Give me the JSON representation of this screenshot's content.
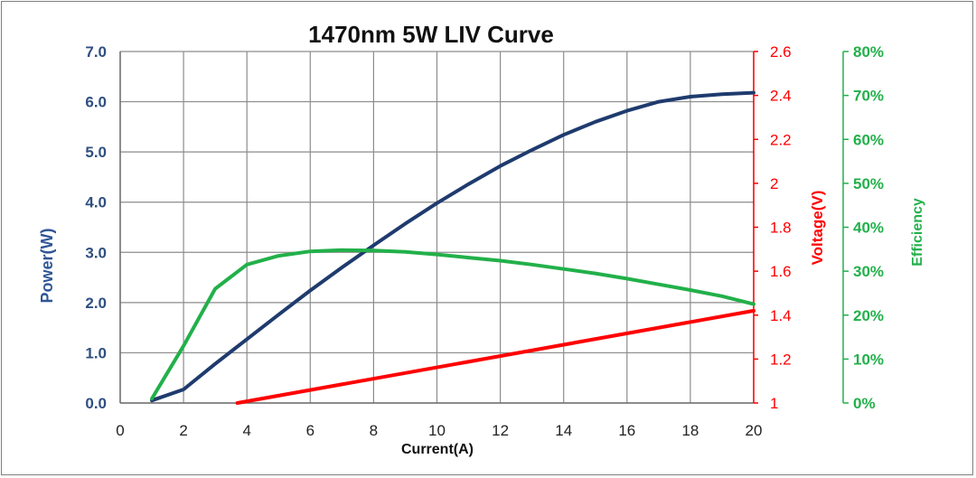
{
  "chart_data": {
    "type": "line",
    "title": "1470nm 5W LIV Curve",
    "xlabel": "Current(A)",
    "xlim": [
      0,
      20
    ],
    "x_ticks": [
      "0",
      "2",
      "4",
      "6",
      "8",
      "10",
      "12",
      "14",
      "16",
      "18",
      "20"
    ],
    "grid": true,
    "axes": {
      "power": {
        "label": "Power(W)",
        "ylim": [
          0,
          7
        ],
        "ticks": [
          "0.0",
          "1.0",
          "2.0",
          "3.0",
          "4.0",
          "5.0",
          "6.0",
          "7.0"
        ],
        "color": "#1f3b6e"
      },
      "voltage": {
        "label": "Voltage(V)",
        "ylim": [
          1,
          2.6
        ],
        "ticks": [
          "1",
          "1.2",
          "1.4",
          "1.6",
          "1.8",
          "2",
          "2.2",
          "2.4",
          "2.6"
        ],
        "color": "#ff0000"
      },
      "efficiency": {
        "label": "Efficiency",
        "ylim": [
          0,
          80
        ],
        "ticks": [
          "0%",
          "10%",
          "20%",
          "30%",
          "40%",
          "50%",
          "60%",
          "70%",
          "80%"
        ],
        "color": "#22b04a"
      }
    },
    "series": [
      {
        "axis": "power",
        "color": "#1f3b6e",
        "x": [
          1,
          2,
          3,
          4,
          5,
          6,
          7,
          8,
          9,
          10,
          11,
          12,
          13,
          14,
          15,
          16,
          17,
          18,
          19,
          20
        ],
        "values": [
          0.05,
          0.27,
          0.78,
          1.27,
          1.76,
          2.24,
          2.7,
          3.14,
          3.57,
          3.98,
          4.36,
          4.72,
          5.04,
          5.34,
          5.6,
          5.82,
          6.0,
          6.1,
          6.15,
          6.18
        ]
      },
      {
        "axis": "voltage",
        "color": "#ff0000",
        "x": [
          3.7,
          20
        ],
        "values": [
          1.0,
          1.42
        ]
      },
      {
        "axis": "efficiency",
        "color": "#22b04a",
        "x": [
          1,
          2,
          3,
          4,
          5,
          6,
          7,
          8,
          9,
          10,
          11,
          12,
          13,
          14,
          15,
          16,
          17,
          18,
          19,
          20
        ],
        "values": [
          1,
          13,
          26,
          31.5,
          33.5,
          34.5,
          34.8,
          34.7,
          34.4,
          33.8,
          33.1,
          32.4,
          31.5,
          30.5,
          29.5,
          28.3,
          27,
          25.7,
          24.3,
          22.5
        ]
      }
    ]
  }
}
